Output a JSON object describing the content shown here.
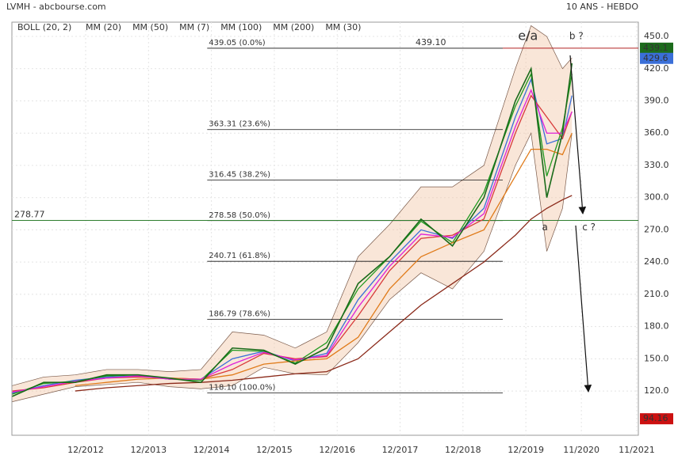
{
  "chart_data": {
    "type": "line",
    "title": "LVMH - abcbourse.com",
    "subtitle": "10 ANS - HEBDO",
    "x": [
      2011.75,
      2012.25,
      2012.75,
      2013.25,
      2013.75,
      2014.25,
      2014.75,
      2015.25,
      2015.75,
      2016.25,
      2016.75,
      2017.25,
      2017.75,
      2018.25,
      2018.75,
      2019.25,
      2019.75,
      2020.0,
      2020.25,
      2020.5,
      2020.65
    ],
    "price": {
      "color": "#1a6b1a",
      "values": [
        115,
        128,
        128,
        135,
        135,
        132,
        128,
        160,
        158,
        145,
        160,
        220,
        245,
        280,
        255,
        300,
        390,
        420,
        300,
        360,
        425
      ]
    },
    "bollinger": {
      "name": "BOLL (20, 2)",
      "color": "#f2c7a8",
      "upper": [
        125,
        133,
        135,
        140,
        140,
        138,
        140,
        175,
        172,
        160,
        175,
        245,
        275,
        310,
        310,
        330,
        420,
        460,
        450,
        420,
        430
      ],
      "lower": [
        110,
        117,
        124,
        126,
        128,
        124,
        122,
        125,
        142,
        136,
        135,
        165,
        205,
        230,
        215,
        250,
        330,
        360,
        250,
        290,
        360
      ]
    },
    "series": [
      {
        "name": "MM (20)",
        "color": "#3a6fd8",
        "values": [
          118,
          125,
          130,
          133,
          134,
          131,
          131,
          150,
          157,
          148,
          155,
          205,
          240,
          270,
          262,
          290,
          375,
          410,
          350,
          355,
          395
        ]
      },
      {
        "name": "MM (50)",
        "color": "#d83a3a",
        "values": [
          120,
          123,
          128,
          132,
          133,
          132,
          131,
          140,
          155,
          150,
          152,
          190,
          232,
          262,
          265,
          280,
          360,
          395,
          375,
          355,
          380
        ]
      },
      {
        "name": "MM (7)",
        "color": "#1f9a1f",
        "values": [
          117,
          127,
          129,
          134,
          135,
          131,
          130,
          158,
          157,
          146,
          165,
          215,
          245,
          278,
          258,
          305,
          385,
          415,
          320,
          365,
          415
        ]
      },
      {
        "name": "MM (100)",
        "color": "#e07b1a",
        "values": [
          null,
          null,
          125,
          128,
          131,
          132,
          131,
          135,
          145,
          148,
          150,
          170,
          215,
          245,
          258,
          270,
          320,
          345,
          345,
          340,
          360
        ]
      },
      {
        "name": "MM (200)",
        "color": "#8b2a1a",
        "values": [
          null,
          null,
          120,
          123,
          125,
          127,
          128,
          130,
          133,
          136,
          138,
          150,
          175,
          200,
          220,
          240,
          265,
          280,
          290,
          298,
          302
        ]
      },
      {
        "name": "MM (30)",
        "color": "#e020d8",
        "values": [
          119,
          124,
          129,
          132,
          134,
          131,
          131,
          145,
          156,
          149,
          153,
          198,
          236,
          266,
          263,
          285,
          366,
          400,
          360,
          360,
          380
        ]
      }
    ],
    "fibonacci": {
      "x": [
        2014.85,
        2019.55
      ],
      "levels": [
        {
          "value": 439.05,
          "label": "439.05  (0.0%)"
        },
        {
          "value": 363.31,
          "label": "363.31  (23.6%)"
        },
        {
          "value": 316.45,
          "label": "316.45  (38.2%)"
        },
        {
          "value": 278.58,
          "label": "278.58  (50.0%)"
        },
        {
          "value": 240.71,
          "label": "240.71  (61.8%)"
        },
        {
          "value": 186.79,
          "label": "186.79  (78.6%)"
        },
        {
          "value": 118.1,
          "label": "118.10  (100.0%)"
        }
      ]
    },
    "hlines": [
      {
        "value": 439.1,
        "label": "439.10",
        "color": "#b22222",
        "from": 2019.55
      },
      {
        "value": 278.77,
        "label": "278.77",
        "color": "#2e7d2e",
        "from": 2011.744
      }
    ],
    "annotations": [
      {
        "text": "e/a",
        "x": 2019.95,
        "y": 450,
        "color": "#1a237e"
      },
      {
        "text": "b ?",
        "x": 2020.72,
        "y": 450,
        "color": "#b22222"
      },
      {
        "text": "a",
        "x": 2020.22,
        "y": 272,
        "color": "#b22222"
      },
      {
        "text": "c ?",
        "x": 2020.92,
        "y": 272,
        "color": "#b22222"
      }
    ],
    "price_tags": [
      {
        "value": 439.1,
        "label": "439.1",
        "color": "#1c6b1c"
      },
      {
        "value": 429.6,
        "label": "429.6",
        "color": "#3a6fd8"
      },
      {
        "value": 94.16,
        "label": "94.16",
        "color": "#cc1111"
      }
    ],
    "xlim": [
      2011.744,
      2021.706
    ],
    "ylim": [
      78.8,
      463.3
    ],
    "xticks": [
      {
        "value": 2012.917,
        "label": "12/2012"
      },
      {
        "value": 2013.917,
        "label": "12/2013"
      },
      {
        "value": 2014.917,
        "label": "12/2014"
      },
      {
        "value": 2015.917,
        "label": "12/2015"
      },
      {
        "value": 2016.917,
        "label": "12/2016"
      },
      {
        "value": 2017.917,
        "label": "12/2017"
      },
      {
        "value": 2018.917,
        "label": "12/2018"
      },
      {
        "value": 2019.917,
        "label": "12/2019"
      },
      {
        "value": 2020.8,
        "label": "11/2020"
      },
      {
        "value": 2021.68,
        "label": "11/2021"
      }
    ],
    "yticks": [
      {
        "value": 120,
        "label": "120.0"
      },
      {
        "value": 150,
        "label": "150.0"
      },
      {
        "value": 180,
        "label": "180.0"
      },
      {
        "value": 210,
        "label": "210.0"
      },
      {
        "value": 240,
        "label": "240.0"
      },
      {
        "value": 270,
        "label": "270.0"
      },
      {
        "value": 300,
        "label": "300.0"
      },
      {
        "value": 330,
        "label": "330.0"
      },
      {
        "value": 360,
        "label": "360.0"
      },
      {
        "value": 390,
        "label": "390.0"
      },
      {
        "value": 420,
        "label": "420.0"
      },
      {
        "value": 450,
        "label": "450.0"
      }
    ],
    "grid": true
  }
}
